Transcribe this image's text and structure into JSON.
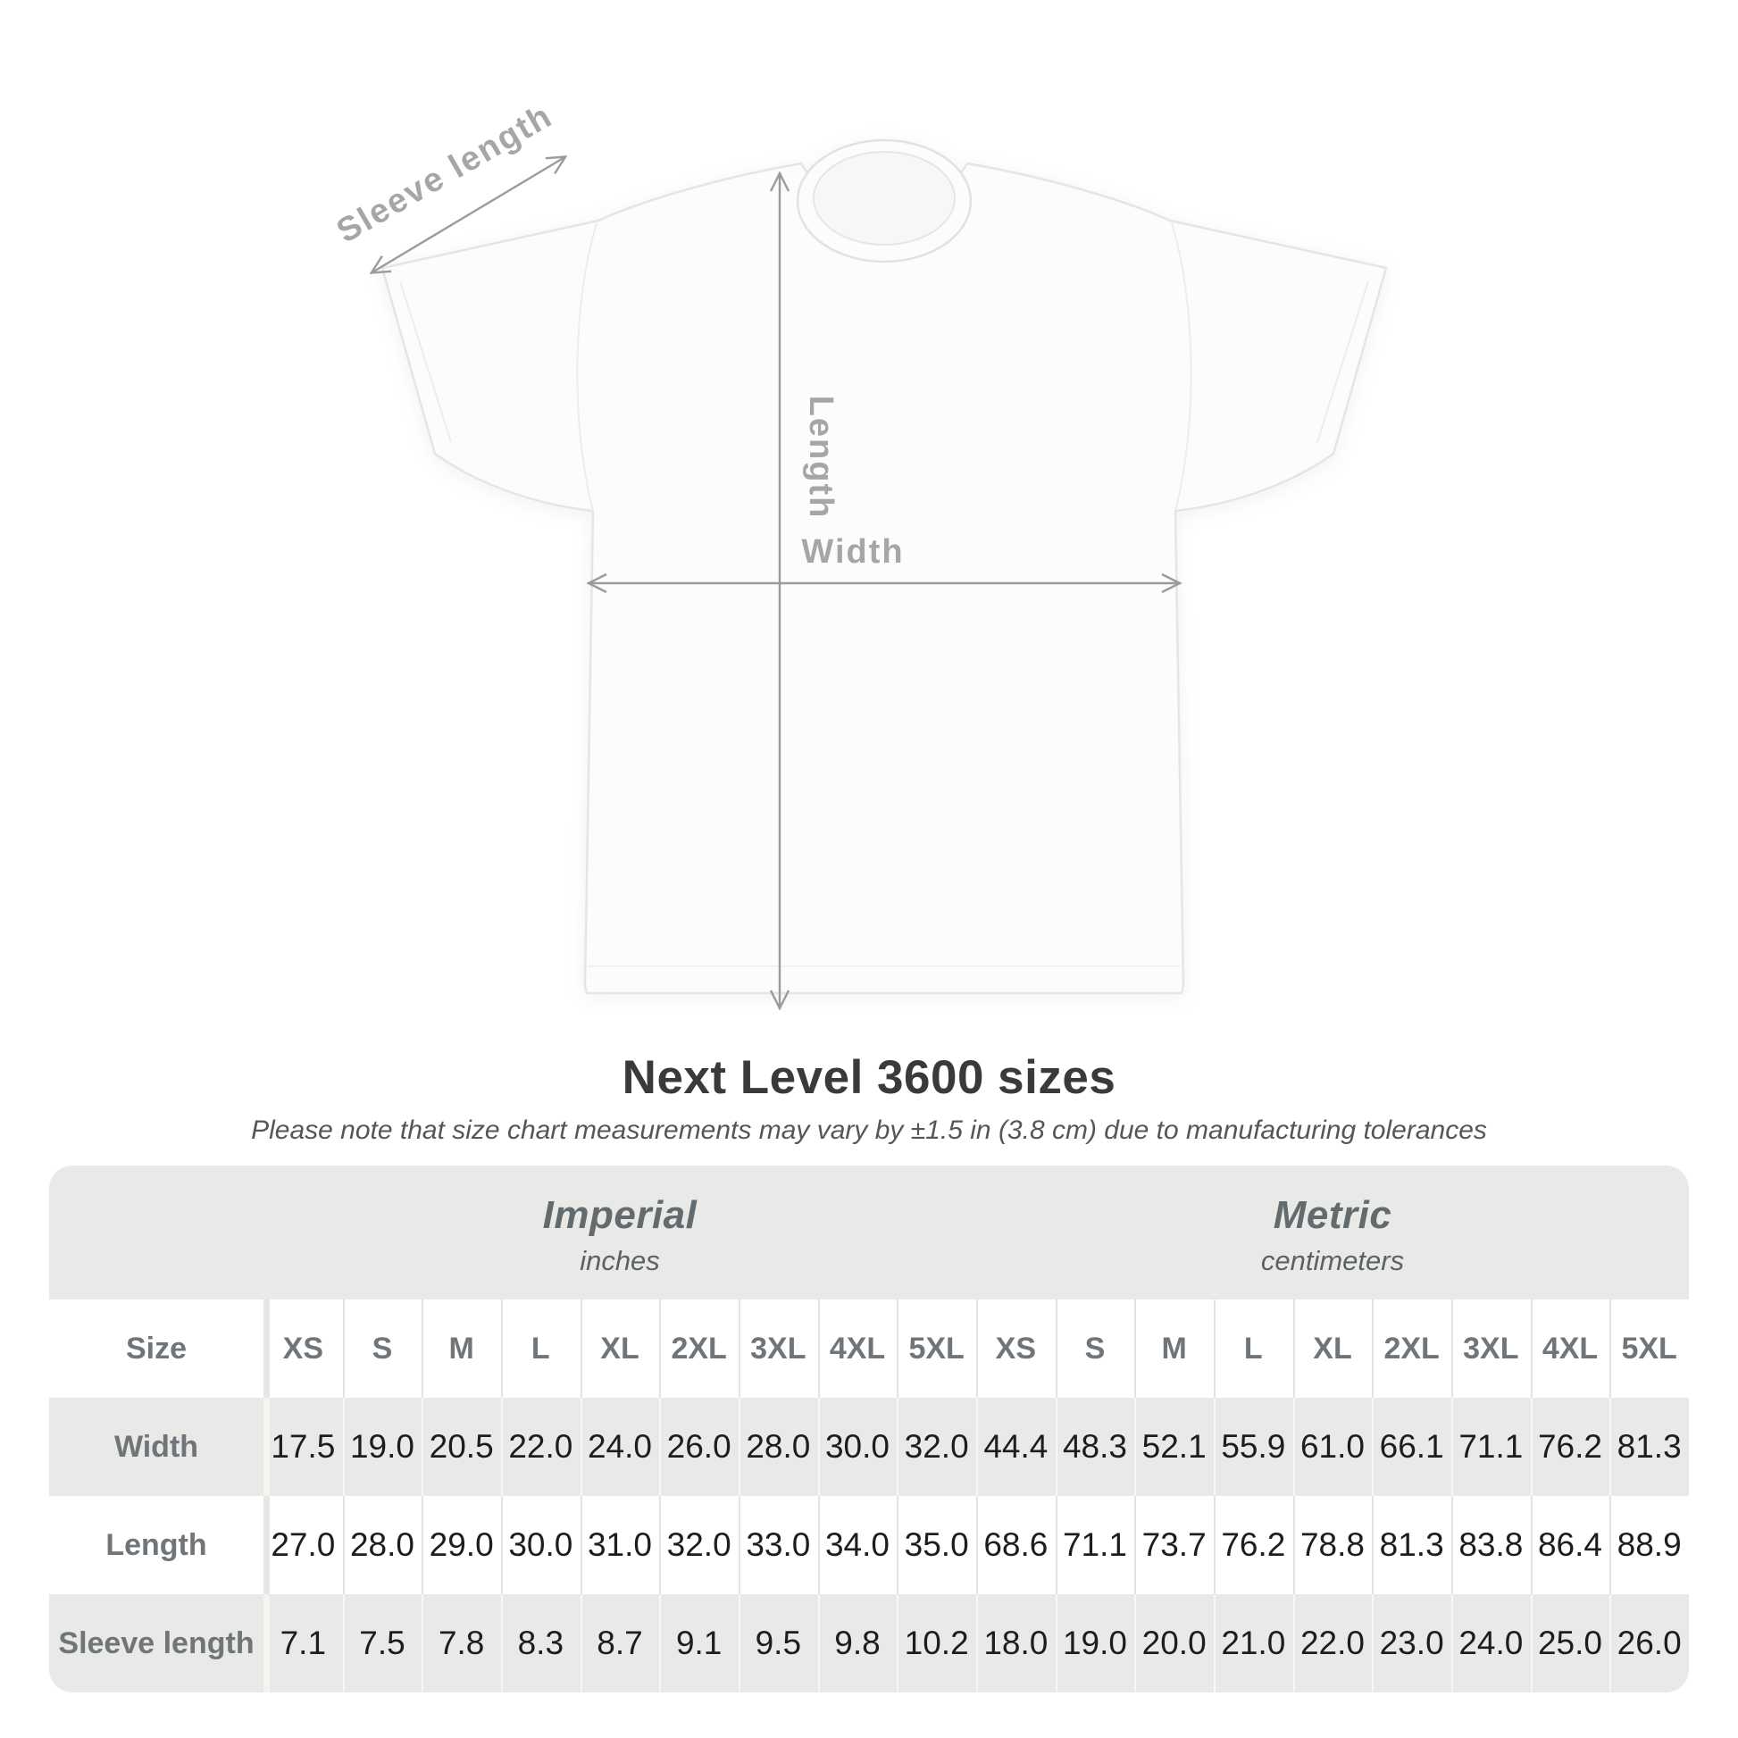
{
  "heading": {
    "title": "Next Level 3600 sizes",
    "subtitle": "Please note that size chart measurements may vary by ±1.5 in (3.8 cm) due to manufacturing tolerances"
  },
  "diagram": {
    "labels": {
      "sleeve_length": "Sleeve length",
      "length": "Length",
      "width": "Width"
    },
    "arrow_color": "#9b9b9b",
    "label_color": "#a6a6a6",
    "shirt_fill": "#fcfcfb",
    "shirt_outline": "#e5e5e3"
  },
  "table": {
    "background": "#e9e9e7",
    "size_label": "Size",
    "sizes": [
      "XS",
      "S",
      "M",
      "L",
      "XL",
      "2XL",
      "3XL",
      "4XL",
      "5XL"
    ],
    "groups": [
      {
        "name": "Imperial",
        "unit": "inches"
      },
      {
        "name": "Metric",
        "unit": "centimeters"
      }
    ],
    "rows": [
      {
        "label": "Width",
        "imperial": [
          "17.5",
          "19.0",
          "20.5",
          "22.0",
          "24.0",
          "26.0",
          "28.0",
          "30.0",
          "32.0"
        ],
        "metric": [
          "44.4",
          "48.3",
          "52.1",
          "55.9",
          "61.0",
          "66.1",
          "71.1",
          "76.2",
          "81.3"
        ]
      },
      {
        "label": "Length",
        "imperial": [
          "27.0",
          "28.0",
          "29.0",
          "30.0",
          "31.0",
          "32.0",
          "33.0",
          "34.0",
          "35.0"
        ],
        "metric": [
          "68.6",
          "71.1",
          "73.7",
          "76.2",
          "78.8",
          "81.3",
          "83.8",
          "86.4",
          "88.9"
        ]
      },
      {
        "label": "Sleeve length",
        "imperial": [
          "7.1",
          "7.5",
          "7.8",
          "8.3",
          "8.7",
          "9.1",
          "9.5",
          "9.8",
          "10.2"
        ],
        "metric": [
          "18.0",
          "19.0",
          "20.0",
          "21.0",
          "22.0",
          "23.0",
          "24.0",
          "25.0",
          "26.0"
        ]
      }
    ]
  }
}
